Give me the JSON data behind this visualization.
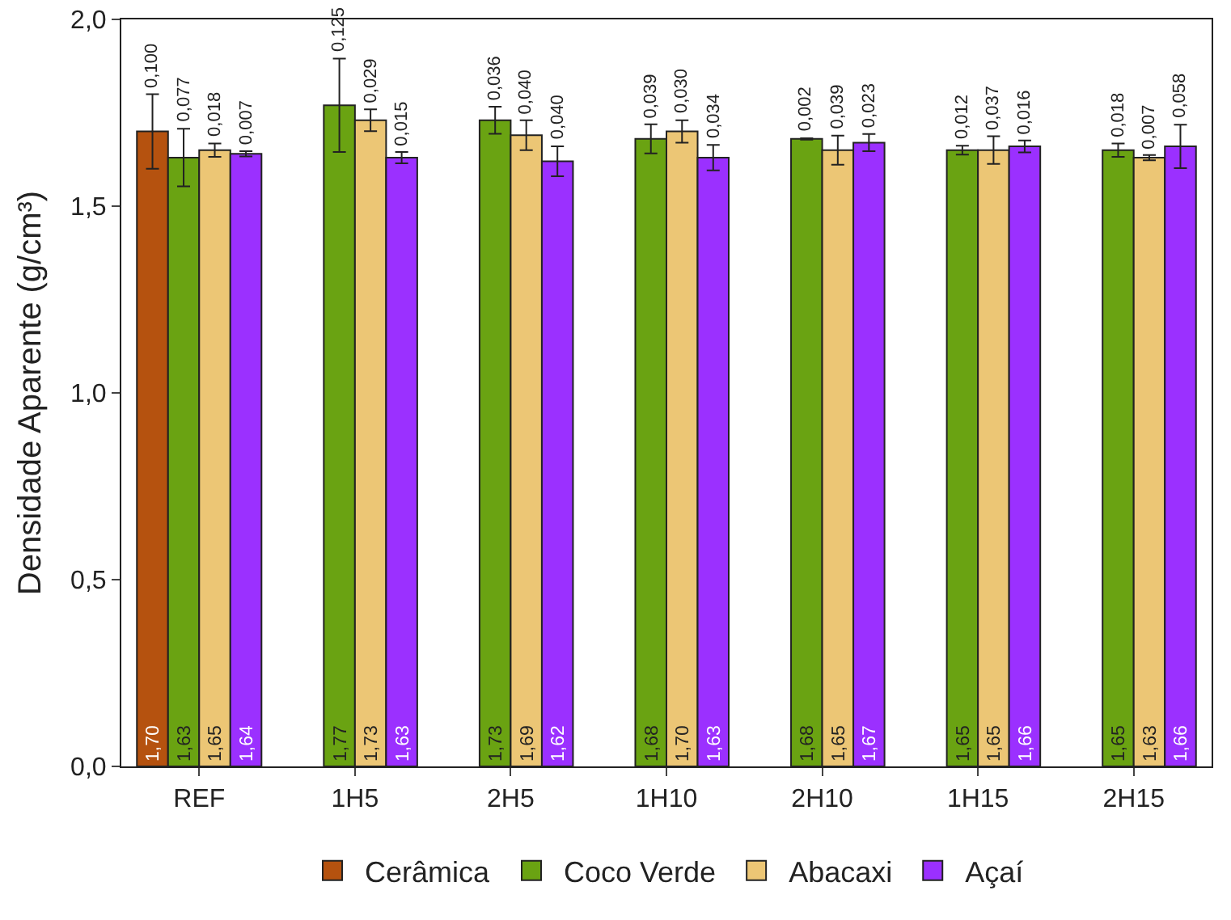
{
  "chart_data": {
    "type": "bar",
    "ylabel": "Densidade Aparente (g/cm³)",
    "categories": [
      "REF",
      "1H5",
      "2H5",
      "1H10",
      "2H10",
      "1H15",
      "2H15"
    ],
    "series": [
      {
        "name": "Cerâmica",
        "color": "#b5520f",
        "values": [
          1.7,
          null,
          null,
          null,
          null,
          null,
          null
        ],
        "errors": [
          0.1,
          null,
          null,
          null,
          null,
          null,
          null
        ],
        "value_labels": [
          "1,70",
          null,
          null,
          null,
          null,
          null,
          null
        ]
      },
      {
        "name": "Coco Verde",
        "color": "#6aa312",
        "values": [
          1.63,
          1.77,
          1.73,
          1.68,
          1.68,
          1.65,
          1.65
        ],
        "errors": [
          0.077,
          0.125,
          0.036,
          0.039,
          0.002,
          0.012,
          0.018
        ],
        "value_labels": [
          "1,63",
          "1,77",
          "1,73",
          "1,68",
          "1,68",
          "1,65",
          "1,65"
        ]
      },
      {
        "name": "Abacaxi",
        "color": "#ecc675",
        "values": [
          1.65,
          1.73,
          1.69,
          1.7,
          1.65,
          1.65,
          1.63
        ],
        "errors": [
          0.018,
          0.029,
          0.04,
          0.03,
          0.039,
          0.037,
          0.007
        ],
        "value_labels": [
          "1,65",
          "1,73",
          "1,69",
          "1,70",
          "1,65",
          "1,65",
          "1,63"
        ]
      },
      {
        "name": "Açaí",
        "color": "#9b30ff",
        "values": [
          1.64,
          1.63,
          1.62,
          1.63,
          1.67,
          1.66,
          1.66
        ],
        "errors": [
          0.007,
          0.015,
          0.04,
          0.034,
          0.023,
          0.016,
          0.058
        ],
        "value_labels": [
          "1,64",
          "1,63",
          "1,62",
          "1,63",
          "1,67",
          "1,66",
          "1,66"
        ]
      }
    ],
    "annotations": [
      "0,100",
      "0,077",
      "0,018",
      "0,007",
      "0,125",
      "0,029",
      "0,015",
      "0,036",
      "0,040",
      "0,040",
      "0,039",
      "0,030",
      "0,034",
      "0,002",
      "0,039",
      "0,023",
      "0,012",
      "0,037",
      "0,016",
      "0,018",
      "0,007",
      "0,058"
    ],
    "ylim": [
      0,
      2.0
    ],
    "yticks": [
      {
        "value": 0,
        "label": "0,0"
      },
      {
        "value": 0.5,
        "label": "0,5"
      },
      {
        "value": 1.0,
        "label": "1,0"
      },
      {
        "value": 1.5,
        "label": "1,5"
      },
      {
        "value": 2.0,
        "label": "2,0"
      }
    ],
    "grid": false,
    "legend": "bottom"
  }
}
